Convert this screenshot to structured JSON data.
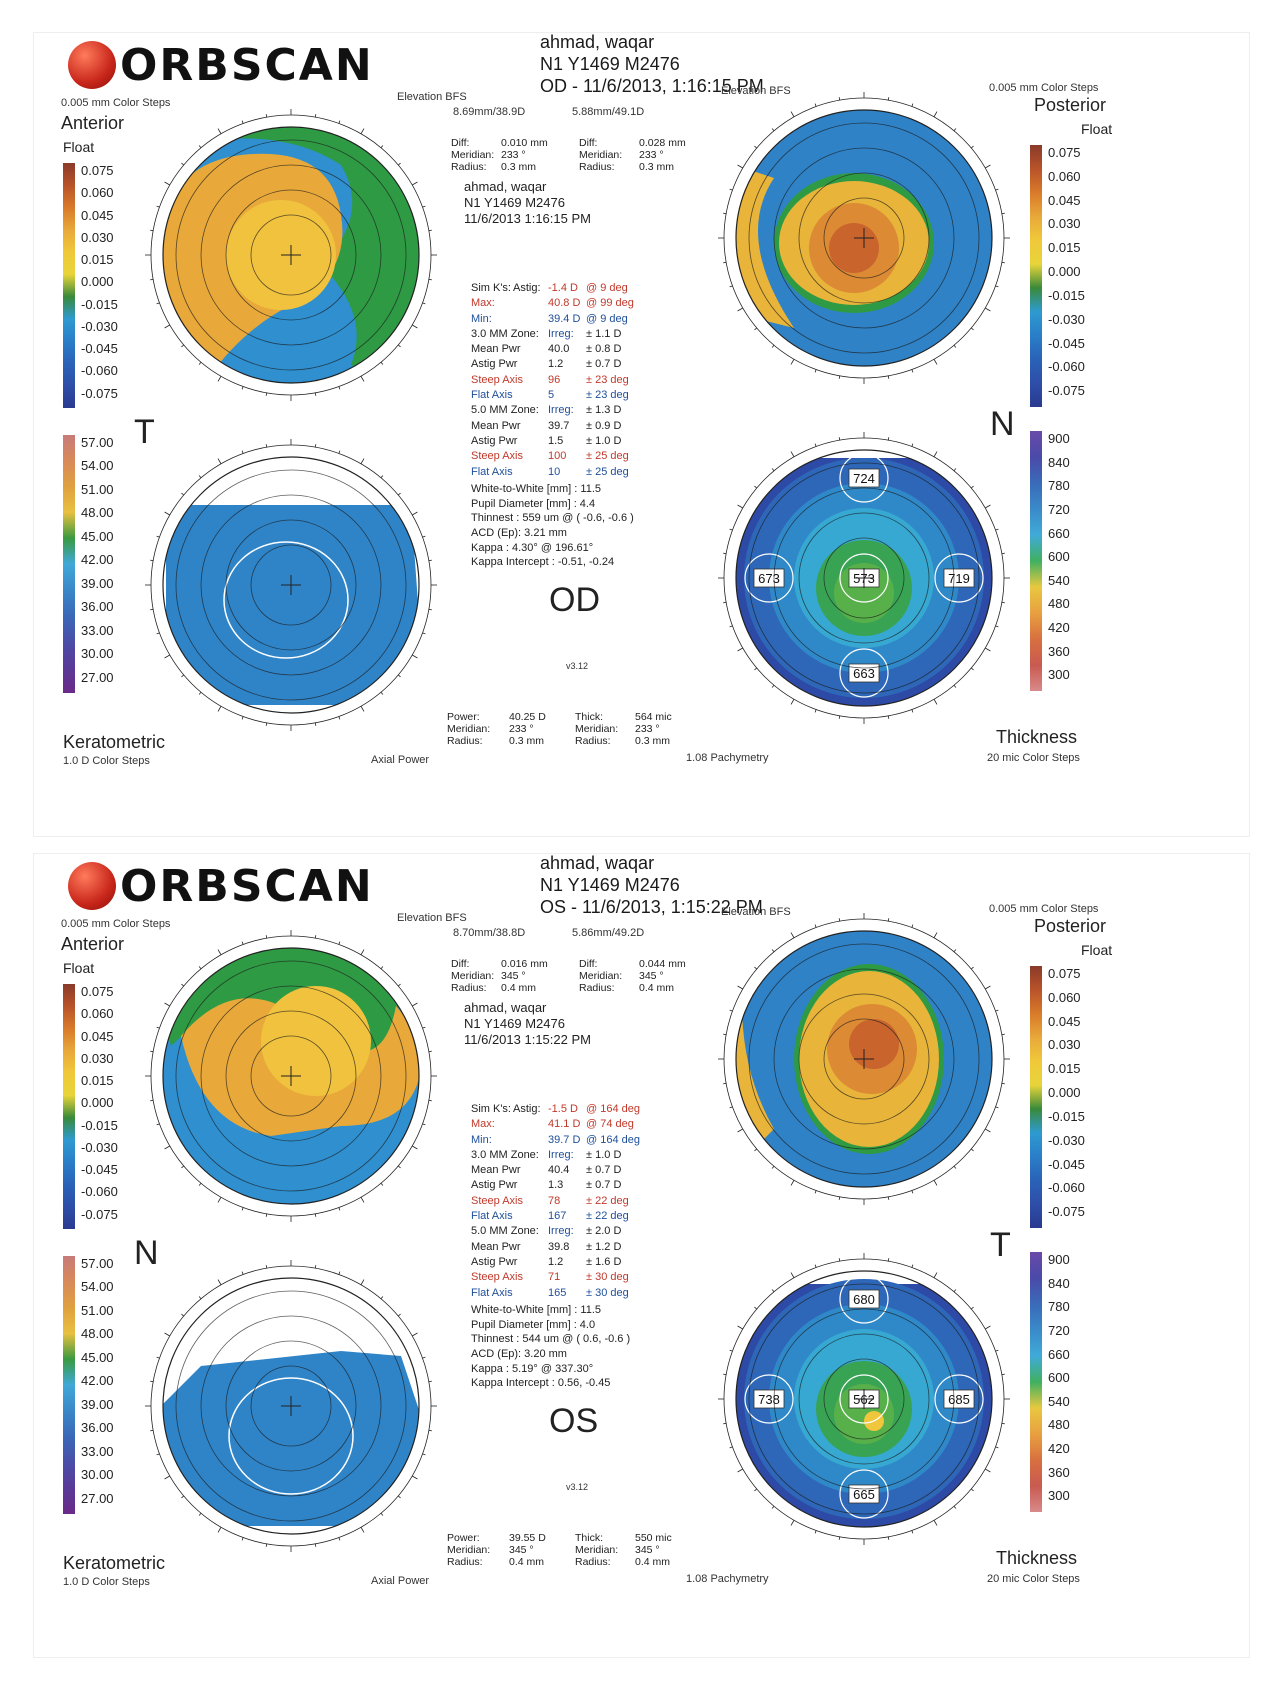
{
  "brand": "ORBSCAN",
  "colors": {
    "scale_float": [
      "#8a3a2a",
      "#b8532a",
      "#d87a2a",
      "#e8a83a",
      "#f0c83a",
      "#e8d43a",
      "#3a8a3a",
      "#2e9ad0",
      "#2a7ec8",
      "#2a62b8",
      "#2e4ea8",
      "#2a3a90"
    ],
    "scale_kerat": [
      "#c87a7a",
      "#d88a5a",
      "#e0a040",
      "#e8c040",
      "#3a9a40",
      "#40a8d8",
      "#3a88c8",
      "#3a68b8",
      "#4a4ea8",
      "#5a3a98",
      "#6a2a88"
    ],
    "scale_thick": [
      "#6a4aa8",
      "#4a4aa8",
      "#3a6ab8",
      "#3a8ac8",
      "#40aad8",
      "#40b060",
      "#e8c840",
      "#e8a040",
      "#d87040",
      "#c85a50",
      "#d88a8a"
    ],
    "accent_red": "#c0392b"
  },
  "scales": {
    "float": [
      "0.075",
      "0.060",
      "0.045",
      "0.030",
      "0.015",
      "0.000",
      "-0.015",
      "-0.030",
      "-0.045",
      "-0.060",
      "-0.075"
    ],
    "float_right": [
      "0.075",
      "0.060",
      "0.045",
      "0.030",
      "0.015",
      "0.000",
      "-0.015",
      "-0.030",
      "-0.045",
      "-0.060",
      "-0.075"
    ],
    "keratometric": [
      "57.00",
      "54.00",
      "51.00",
      "48.00",
      "45.00",
      "42.00",
      "39.00",
      "36.00",
      "33.00",
      "30.00",
      "27.00"
    ],
    "thickness": [
      "900",
      "840",
      "780",
      "720",
      "660",
      "600",
      "540",
      "480",
      "420",
      "360",
      "300"
    ]
  },
  "reports": [
    {
      "patient_name": "ahmad, waqar",
      "patient_id": "N1 Y1469 M2476",
      "exam_line": "OD - 11/6/2013, 1:16:15 PM",
      "color_steps_left": "0.005 mm Color Steps",
      "color_steps_right": "0.005 mm Color Steps",
      "anterior": "Anterior",
      "float_left": "Float",
      "posterior": "Posterior",
      "float_right": "Float",
      "elev_left": "Elevation BFS",
      "elev_right": "Elevation BFS",
      "bfs_ant": "8.69mm/38.9D",
      "bfs_post": "5.88mm/49.1D",
      "diff_ant": {
        "diff_label": "Diff:",
        "diff": "0.010 mm",
        "meridian_label": "Meridian:",
        "meridian": "233 °",
        "radius_label": "Radius:",
        "radius": "0.3 mm"
      },
      "diff_post": {
        "diff_label": "Diff:",
        "diff": "0.028 mm",
        "meridian_label": "Meridian:",
        "meridian": "233 °",
        "radius_label": "Radius:",
        "radius": "0.3 mm"
      },
      "pat_name": "ahmad, waqar",
      "pat_id": "N1 Y1469 M2476",
      "pat_date": "11/6/2013 1:16:15 PM",
      "simk": {
        "astig": [
          "Sim K's:",
          "Astig:",
          "-1.4 D",
          "@ 9 deg"
        ],
        "max": [
          "Max:",
          "40.8 D",
          "@ 99 deg"
        ],
        "min": [
          "Min:",
          "39.4 D",
          "@ 9 deg"
        ]
      },
      "zone3": {
        "header": [
          "3.0 MM Zone:",
          "Irreg:",
          "± 1.1 D"
        ],
        "mean": [
          "Mean Pwr",
          "40.0",
          "± 0.8 D"
        ],
        "astig": [
          "Astig Pwr",
          "1.2",
          "± 0.7 D"
        ],
        "steep": [
          "Steep Axis",
          "96",
          "± 23 deg"
        ],
        "flat": [
          "Flat Axis",
          "5",
          "± 23 deg"
        ]
      },
      "zone5": {
        "header": [
          "5.0 MM Zone:",
          "Irreg:",
          "± 1.3 D"
        ],
        "mean": [
          "Mean Pwr",
          "39.7",
          "± 0.9 D"
        ],
        "astig": [
          "Astig Pwr",
          "1.5",
          "± 1.0 D"
        ],
        "steep": [
          "Steep Axis",
          "100",
          "± 25 deg"
        ],
        "flat": [
          "Flat Axis",
          "10",
          "± 25 deg"
        ]
      },
      "misc": [
        "White-to-White [mm] : 11.5",
        "Pupil Diameter [mm] : 4.4",
        "Thinnest : 559 um @ ( -0.6, -0.6 )",
        "ACD (Ep): 3.21 mm",
        "Kappa : 4.30° @ 196.61°",
        "Kappa Intercept : -0.51, -0.24"
      ],
      "eye": "OD",
      "version": "v3.12",
      "letter_left": "T",
      "letter_right": "N",
      "bottom_ant": {
        "power_label": "Power:",
        "power": "40.25 D",
        "meridian_label": "Meridian:",
        "meridian": "233 °",
        "radius_label": "Radius:",
        "radius": "0.3 mm"
      },
      "bottom_thick": {
        "thick_label": "Thick:",
        "thick": "564 mic",
        "meridian_label": "Meridian:",
        "meridian": "233 °",
        "radius_label": "Radius:",
        "radius": "0.3 mm"
      },
      "keratometric": "Keratometric",
      "kerat_steps": "1.0 D Color Steps",
      "axial_power": "Axial Power",
      "pachymetry": "1.08 Pachymetry",
      "thickness": "Thickness",
      "thick_steps": "20 mic Color Steps",
      "pachy_values": {
        "top": "724",
        "left": "673",
        "center": "573",
        "right": "719",
        "bottom": "663"
      }
    },
    {
      "patient_name": "ahmad, waqar",
      "patient_id": "N1 Y1469 M2476",
      "exam_line": "OS - 11/6/2013, 1:15:22 PM",
      "color_steps_left": "0.005 mm Color Steps",
      "color_steps_right": "0.005 mm Color Steps",
      "anterior": "Anterior",
      "float_left": "Float",
      "posterior": "Posterior",
      "float_right": "Float",
      "elev_left": "Elevation BFS",
      "elev_right": "Elevation BFS",
      "bfs_ant": "8.70mm/38.8D",
      "bfs_post": "5.86mm/49.2D",
      "diff_ant": {
        "diff_label": "Diff:",
        "diff": "0.016 mm",
        "meridian_label": "Meridian:",
        "meridian": "345 °",
        "radius_label": "Radius:",
        "radius": "0.4 mm"
      },
      "diff_post": {
        "diff_label": "Diff:",
        "diff": "0.044 mm",
        "meridian_label": "Meridian:",
        "meridian": "345 °",
        "radius_label": "Radius:",
        "radius": "0.4 mm"
      },
      "pat_name": "ahmad, waqar",
      "pat_id": "N1 Y1469 M2476",
      "pat_date": "11/6/2013 1:15:22 PM",
      "simk": {
        "astig": [
          "Sim K's:",
          "Astig:",
          "-1.5 D",
          "@ 164 deg"
        ],
        "max": [
          "Max:",
          "41.1 D",
          "@ 74 deg"
        ],
        "min": [
          "Min:",
          "39.7 D",
          "@ 164 deg"
        ]
      },
      "zone3": {
        "header": [
          "3.0 MM Zone:",
          "Irreg:",
          "± 1.0 D"
        ],
        "mean": [
          "Mean Pwr",
          "40.4",
          "± 0.7 D"
        ],
        "astig": [
          "Astig Pwr",
          "1.3",
          "± 0.7 D"
        ],
        "steep": [
          "Steep Axis",
          "78",
          "± 22 deg"
        ],
        "flat": [
          "Flat Axis",
          "167",
          "± 22 deg"
        ]
      },
      "zone5": {
        "header": [
          "5.0 MM Zone:",
          "Irreg:",
          "± 2.0 D"
        ],
        "mean": [
          "Mean Pwr",
          "39.8",
          "± 1.2 D"
        ],
        "astig": [
          "Astig Pwr",
          "1.2",
          "± 1.6 D"
        ],
        "steep": [
          "Steep Axis",
          "71",
          "± 30 deg"
        ],
        "flat": [
          "Flat Axis",
          "165",
          "± 30 deg"
        ]
      },
      "misc": [
        "White-to-White [mm] : 11.5",
        "Pupil Diameter [mm] : 4.0",
        "Thinnest : 544 um @ ( 0.6, -0.6 )",
        "ACD (Ep): 3.20 mm",
        "Kappa : 5.19° @ 337.30°",
        "Kappa Intercept : 0.56, -0.45"
      ],
      "eye": "OS",
      "version": "v3.12",
      "letter_left": "N",
      "letter_right": "T",
      "bottom_ant": {
        "power_label": "Power:",
        "power": "39.55 D",
        "meridian_label": "Meridian:",
        "meridian": "345 °",
        "radius_label": "Radius:",
        "radius": "0.4 mm"
      },
      "bottom_thick": {
        "thick_label": "Thick:",
        "thick": "550 mic",
        "meridian_label": "Meridian:",
        "meridian": "345 °",
        "radius_label": "Radius:",
        "radius": "0.4 mm"
      },
      "keratometric": "Keratometric",
      "kerat_steps": "1.0 D Color Steps",
      "axial_power": "Axial Power",
      "pachymetry": "1.08 Pachymetry",
      "thickness": "Thickness",
      "thick_steps": "20 mic Color Steps",
      "pachy_values": {
        "top": "680",
        "left": "738",
        "center": "562",
        "right": "685",
        "bottom": "665"
      }
    }
  ]
}
